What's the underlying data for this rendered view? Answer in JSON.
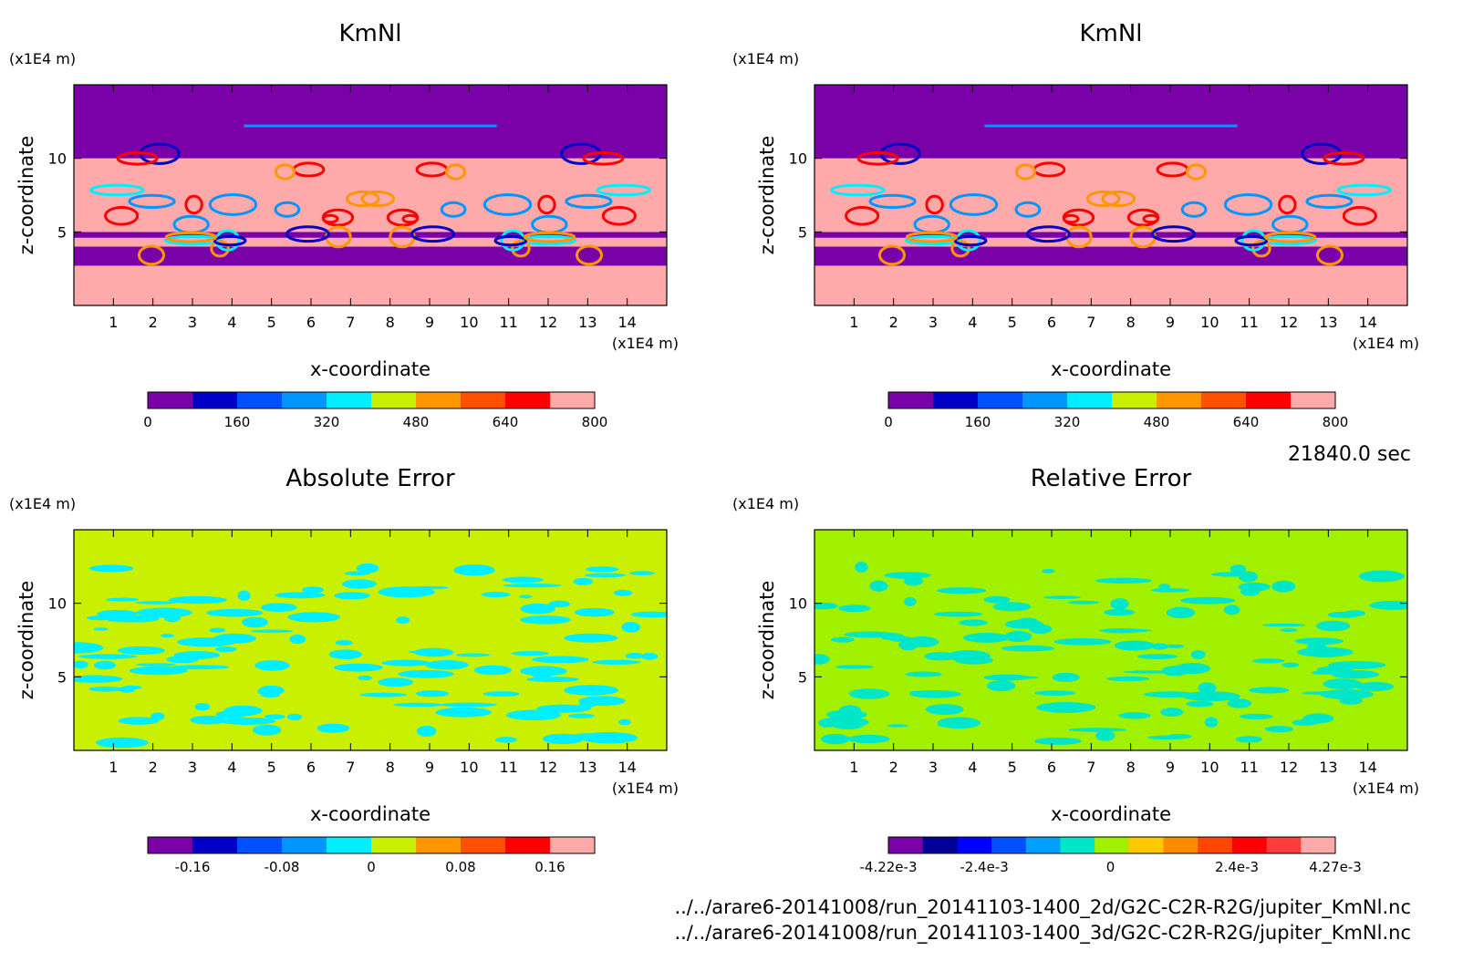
{
  "time_label": "21840.0 sec",
  "file_paths": [
    "../../arare6-20141008/run_20141103-1400_2d/G2C-C2R-R2G/jupiter_KmNl.nc",
    "../../arare6-20141008/run_20141103-1400_3d/G2C-C2R-R2G/jupiter_KmNl.nc"
  ],
  "colors": {
    "kmnl_scale": [
      "#7a00a8",
      "#0000c8",
      "#0050ff",
      "#0096ff",
      "#00eeff",
      "#c8f000",
      "#ff9600",
      "#ff5000",
      "#ff0000",
      "#ffaaaa"
    ],
    "abs_scale": [
      "#7a00a8",
      "#0000c8",
      "#0050ff",
      "#0096ff",
      "#00eeff",
      "#c8f000",
      "#ff9600",
      "#ff5000",
      "#ff0000",
      "#ffaaaa"
    ],
    "rel_scale": [
      "#7a00a8",
      "#000096",
      "#0000ff",
      "#0050ff",
      "#00a0ff",
      "#00e6c8",
      "#a0f000",
      "#ffc800",
      "#ff8c00",
      "#ff4600",
      "#ff0000",
      "#ff3c3c",
      "#ffaaaa"
    ]
  },
  "chart_data": [
    {
      "type": "heatmap",
      "title": "KmNl",
      "xlabel": "x-coordinate",
      "ylabel": "z-coordinate",
      "x_unit": "(x1E4 m)",
      "y_unit": "(x1E4 m)",
      "xlim": [
        0,
        15
      ],
      "ylim": [
        0,
        15
      ],
      "x_ticks": [
        "1",
        "2",
        "3",
        "4",
        "5",
        "6",
        "7",
        "8",
        "9",
        "10",
        "11",
        "12",
        "13",
        "14"
      ],
      "y_ticks": [
        "5",
        "10"
      ],
      "colorbar_ticks": [
        "0",
        "160",
        "320",
        "480",
        "640",
        "800"
      ],
      "colorbar_range": [
        0,
        800
      ],
      "bands": [
        {
          "z0": 0,
          "z1": 2.7,
          "level": 9
        },
        {
          "z0": 2.7,
          "z1": 4.0,
          "level": 0
        },
        {
          "z0": 4.0,
          "z1": 4.6,
          "level": 9
        },
        {
          "z0": 4.6,
          "z1": 5.0,
          "level": 0
        },
        {
          "z0": 5.0,
          "z1": 10.0,
          "level": 9
        },
        {
          "z0": 10.0,
          "z1": 15.0,
          "level": 0
        }
      ]
    },
    {
      "type": "heatmap",
      "title": "KmNl",
      "xlabel": "x-coordinate",
      "ylabel": "z-coordinate",
      "x_unit": "(x1E4 m)",
      "y_unit": "(x1E4 m)",
      "xlim": [
        0,
        15
      ],
      "ylim": [
        0,
        15
      ],
      "x_ticks": [
        "1",
        "2",
        "3",
        "4",
        "5",
        "6",
        "7",
        "8",
        "9",
        "10",
        "11",
        "12",
        "13",
        "14"
      ],
      "y_ticks": [
        "5",
        "10"
      ],
      "colorbar_ticks": [
        "0",
        "160",
        "320",
        "480",
        "640",
        "800"
      ],
      "colorbar_range": [
        0,
        800
      ],
      "bands": [
        {
          "z0": 0,
          "z1": 2.7,
          "level": 9
        },
        {
          "z0": 2.7,
          "z1": 4.0,
          "level": 0
        },
        {
          "z0": 4.0,
          "z1": 4.6,
          "level": 9
        },
        {
          "z0": 4.6,
          "z1": 5.0,
          "level": 0
        },
        {
          "z0": 5.0,
          "z1": 10.0,
          "level": 9
        },
        {
          "z0": 10.0,
          "z1": 15.0,
          "level": 0
        }
      ]
    },
    {
      "type": "heatmap",
      "title": "Absolute Error",
      "xlabel": "x-coordinate",
      "ylabel": "z-coordinate",
      "x_unit": "(x1E4 m)",
      "y_unit": "(x1E4 m)",
      "xlim": [
        0,
        15
      ],
      "ylim": [
        0,
        15
      ],
      "x_ticks": [
        "1",
        "2",
        "3",
        "4",
        "5",
        "6",
        "7",
        "8",
        "9",
        "10",
        "11",
        "12",
        "13",
        "14"
      ],
      "y_ticks": [
        "5",
        "10"
      ],
      "colorbar_ticks": [
        "-0.16",
        "-0.08",
        "0",
        "0.08",
        "0.16"
      ],
      "colorbar_range": [
        -0.2,
        0.2
      ],
      "background_level": 5,
      "patch_level": 4
    },
    {
      "type": "heatmap",
      "title": "Relative Error",
      "xlabel": "x-coordinate",
      "ylabel": "z-coordinate",
      "x_unit": "(x1E4 m)",
      "y_unit": "(x1E4 m)",
      "xlim": [
        0,
        15
      ],
      "ylim": [
        0,
        15
      ],
      "x_ticks": [
        "1",
        "2",
        "3",
        "4",
        "5",
        "6",
        "7",
        "8",
        "9",
        "10",
        "11",
        "12",
        "13",
        "14"
      ],
      "y_ticks": [
        "5",
        "10"
      ],
      "colorbar_ticks": [
        "-4.22e-3",
        "-2.4e-3",
        "0",
        "2.4e-3",
        "4.27e-3"
      ],
      "colorbar_range": [
        -0.00422,
        0.00427
      ],
      "background_level": 6,
      "patch_level": 5
    }
  ]
}
